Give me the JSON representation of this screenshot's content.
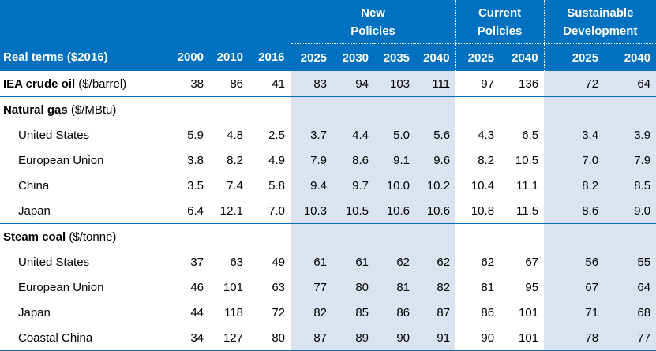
{
  "header": {
    "groups": [
      "New\nPolicies",
      "Current\nPolicies",
      "Sustainable\nDevelopment"
    ],
    "row_label": "Real terms ($2016)",
    "years": [
      "2000",
      "2010",
      "2016",
      "2025",
      "2030",
      "2035",
      "2040",
      "2025",
      "2040",
      "2025",
      "2040"
    ]
  },
  "sections": [
    {
      "title_bold": "IEA crude oil",
      "title_unit": " ($/barrel)",
      "values": [
        "38",
        "86",
        "41",
        "83",
        "94",
        "103",
        "111",
        "97",
        "136",
        "72",
        "64"
      ],
      "rows": []
    },
    {
      "title_bold": "Natural gas",
      "title_unit": " ($/MBtu)",
      "rows": [
        {
          "label": "United States",
          "values": [
            "5.9",
            "4.8",
            "2.5",
            "3.7",
            "4.4",
            "5.0",
            "5.6",
            "4.3",
            "6.5",
            "3.4",
            "3.9"
          ]
        },
        {
          "label": "European Union",
          "values": [
            "3.8",
            "8.2",
            "4.9",
            "7.9",
            "8.6",
            "9.1",
            "9.6",
            "8.2",
            "10.5",
            "7.0",
            "7.9"
          ]
        },
        {
          "label": "China",
          "values": [
            "3.5",
            "7.4",
            "5.8",
            "9.4",
            "9.7",
            "10.0",
            "10.2",
            "10.4",
            "11.1",
            "8.2",
            "8.5"
          ]
        },
        {
          "label": "Japan",
          "values": [
            "6.4",
            "12.1",
            "7.0",
            "10.3",
            "10.5",
            "10.6",
            "10.6",
            "10.8",
            "11.5",
            "8.6",
            "9.0"
          ]
        }
      ]
    },
    {
      "title_bold": "Steam coal",
      "title_unit": " ($/tonne)",
      "rows": [
        {
          "label": "United States",
          "values": [
            "37",
            "63",
            "49",
            "61",
            "61",
            "62",
            "62",
            "62",
            "67",
            "56",
            "55"
          ]
        },
        {
          "label": "European Union",
          "values": [
            "46",
            "101",
            "63",
            "77",
            "80",
            "81",
            "82",
            "81",
            "95",
            "67",
            "64"
          ]
        },
        {
          "label": "Japan",
          "values": [
            "44",
            "118",
            "72",
            "82",
            "85",
            "86",
            "87",
            "86",
            "101",
            "71",
            "68"
          ]
        },
        {
          "label": "Coastal China",
          "values": [
            "34",
            "127",
            "80",
            "87",
            "89",
            "90",
            "91",
            "90",
            "101",
            "78",
            "77"
          ]
        }
      ]
    }
  ],
  "colors": {
    "header_bg": "#0070c0",
    "shade": "#dce3f0",
    "rule": "#0070c0"
  }
}
